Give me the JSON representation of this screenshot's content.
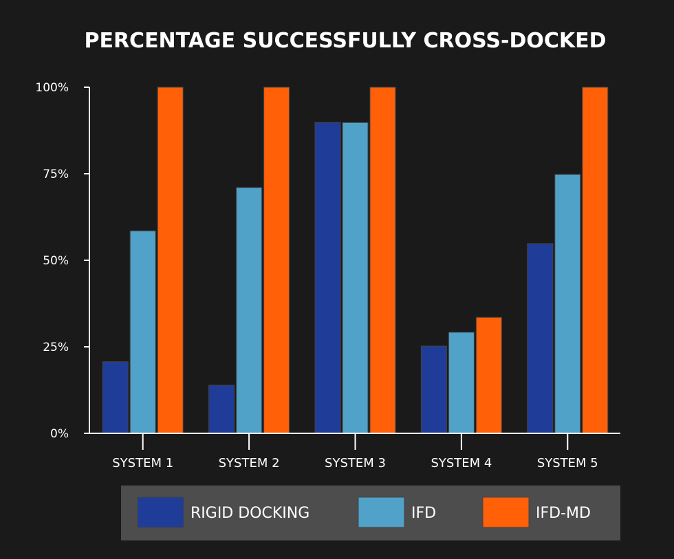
{
  "chart_data": {
    "type": "bar",
    "title": "PERCENTAGE SUCCESSFULLY CROSS-DOCKED",
    "xlabel": "",
    "ylabel": "",
    "categories": [
      "SYSTEM 1",
      "SYSTEM 2",
      "SYSTEM 3",
      "SYSTEM 4",
      "SYSTEM 5"
    ],
    "series": [
      {
        "name": "RIGID DOCKING",
        "color": "#1f3c98",
        "values": [
          20.7,
          13.9,
          89.8,
          25.2,
          54.8
        ]
      },
      {
        "name": "IFD",
        "color": "#51a2c9",
        "values": [
          58.5,
          71.0,
          89.8,
          29.2,
          74.8
        ]
      },
      {
        "name": "IFD-MD",
        "color": "#ff6008",
        "values": [
          100,
          100,
          100,
          33.5,
          100
        ]
      }
    ],
    "ylim": [
      0,
      100
    ],
    "yticks": [
      0,
      25,
      50,
      75,
      100
    ],
    "ytick_labels": [
      "0%",
      "25%",
      "50%",
      "75%",
      "100%"
    ],
    "grid": false,
    "legend_position": "bottom",
    "background_color": "#1a1a1a",
    "legend_background_color": "#4d4d4d"
  }
}
